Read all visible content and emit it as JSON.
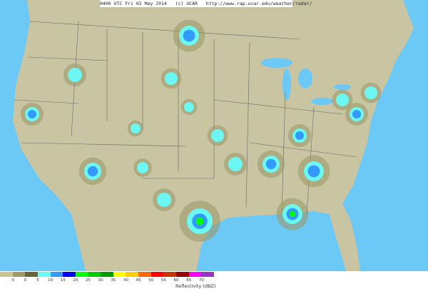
{
  "header": {
    "timestamp": "0400 UTC Fri 02 May 2014",
    "credit": "(c) UCAR",
    "url": "http://www.rap.ucar.edu/weather/radar/"
  },
  "colors": {
    "land": "#c9c5a3",
    "ocean": "#6cc8f4",
    "border": "#555",
    "echo_light": "#9c9a6a",
    "echo_cyan": "#66ffff",
    "echo_blue": "#3399ff",
    "echo_dark_blue": "#0000ff",
    "echo_green": "#00ff00"
  },
  "legend": {
    "title": "Reflectivity (dBZ)",
    "colors": [
      "#c8c496",
      "#9c9a6a",
      "#666640",
      "#66ffff",
      "#3399ff",
      "#0000ff",
      "#00ff00",
      "#00cc00",
      "#009900",
      "#ffff00",
      "#ffcc00",
      "#ff6600",
      "#ff0000",
      "#cc3300",
      "#990000",
      "#ff00ff",
      "#9933cc"
    ],
    "ticks": [
      "-5",
      "0",
      "5",
      "10",
      "15",
      "20",
      "25",
      "30",
      "35",
      "40",
      "45",
      "50",
      "55",
      "60",
      "65",
      "70"
    ]
  }
}
